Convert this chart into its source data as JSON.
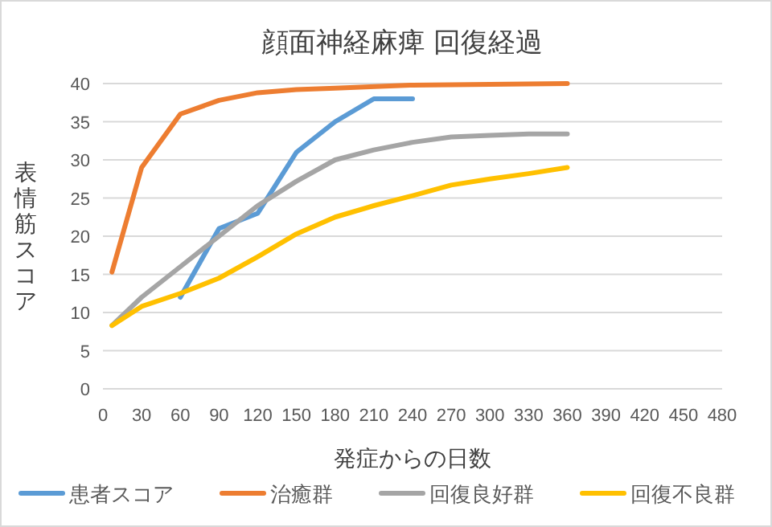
{
  "chart_data": {
    "type": "line",
    "title": "顔面神経麻痺 回復経過",
    "xlabel": "発症からの日数",
    "ylabel": "表情筋スコア",
    "xlim": [
      0,
      480
    ],
    "xticks": [
      0,
      30,
      60,
      90,
      120,
      150,
      180,
      210,
      240,
      270,
      300,
      330,
      360,
      390,
      420,
      450,
      480
    ],
    "ylim": [
      0,
      40
    ],
    "yticks": [
      0,
      5,
      10,
      15,
      20,
      25,
      30,
      35,
      40
    ],
    "grid": "y",
    "legend": "bottom",
    "marker": "none",
    "line_style": "solid",
    "series": [
      {
        "name": "患者スコア",
        "color": "#5b9bd5",
        "x": [
          60,
          90,
          120,
          150,
          180,
          210,
          240
        ],
        "values": [
          12,
          21,
          23,
          31,
          35,
          38,
          38
        ]
      },
      {
        "name": "治癒群",
        "color": "#ed7d31",
        "x": [
          7,
          30,
          60,
          90,
          120,
          150,
          180,
          240,
          360
        ],
        "values": [
          15.3,
          29,
          36,
          37.8,
          38.8,
          39.2,
          39.4,
          39.8,
          40
        ]
      },
      {
        "name": "回復良好群",
        "color": "#a5a5a5",
        "x": [
          7,
          30,
          60,
          90,
          120,
          150,
          180,
          210,
          240,
          270,
          300,
          330,
          360
        ],
        "values": [
          8.3,
          12,
          16,
          20,
          24,
          27.2,
          30,
          31.3,
          32.3,
          33,
          33.2,
          33.4,
          33.4
        ]
      },
      {
        "name": "回復不良群",
        "color": "#ffc000",
        "x": [
          7,
          30,
          60,
          90,
          120,
          150,
          180,
          210,
          240,
          270,
          300,
          330,
          360
        ],
        "values": [
          8.3,
          10.8,
          12.5,
          14.5,
          17.3,
          20.3,
          22.5,
          24,
          25.3,
          26.7,
          27.5,
          28.2,
          29
        ]
      }
    ]
  }
}
